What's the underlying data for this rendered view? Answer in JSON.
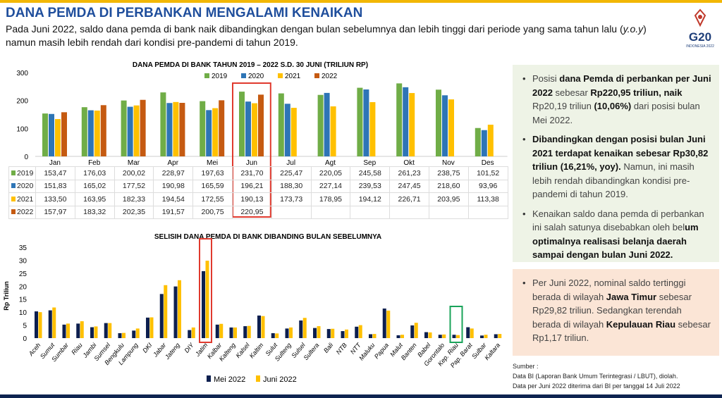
{
  "header": {
    "title": "DANA PEMDA DI PERBANKAN MENGALAMI KENAIKAN",
    "subtitle_parts": [
      "Pada Juni 2022, saldo dana pemda di bank naik dibandingkan dengan bulan sebelumnya dan lebih tinggi dari periode yang sama tahun lalu (",
      "y.o.y",
      ")",
      "namun masih lebih rendah dari kondisi pre-pandemi di tahun 2019."
    ],
    "logo": {
      "text": "G20",
      "sub": "INDONESIA 2022"
    }
  },
  "chart_data": [
    {
      "type": "bar",
      "title": "DANA PEMDA DI BANK TAHUN 2019 – 2022 S.D. 30 JUNI (TRILIUN RP)",
      "ylim": [
        0,
        300
      ],
      "yticks": [
        "0",
        "100",
        "200",
        "300"
      ],
      "legend": "top",
      "categories": [
        "Jan",
        "Feb",
        "Mar",
        "Apr",
        "Mei",
        "Jun",
        "Jul",
        "Agt",
        "Sep",
        "Okt",
        "Nov",
        "Des"
      ],
      "highlight": "Jun",
      "highlight_color": "#e03a2e",
      "series": [
        {
          "name": "2019",
          "color": "#70ad47",
          "values": [
            153.47,
            176.03,
            200.02,
            228.97,
            197.63,
            231.7,
            225.47,
            220.05,
            245.58,
            261.23,
            238.75,
            101.52
          ],
          "labels": [
            "153,47",
            "176,03",
            "200,02",
            "228,97",
            "197,63",
            "231,70",
            "225,47",
            "220,05",
            "245,58",
            "261,23",
            "238,75",
            "101,52"
          ]
        },
        {
          "name": "2020",
          "color": "#2e75b6",
          "values": [
            151.83,
            165.02,
            177.52,
            190.98,
            165.59,
            196.21,
            188.3,
            227.14,
            239.53,
            247.45,
            218.6,
            93.96
          ],
          "labels": [
            "151,83",
            "165,02",
            "177,52",
            "190,98",
            "165,59",
            "196,21",
            "188,30",
            "227,14",
            "239,53",
            "247,45",
            "218,60",
            "93,96"
          ]
        },
        {
          "name": "2021",
          "color": "#ffc000",
          "values": [
            133.5,
            163.95,
            182.33,
            194.54,
            172.55,
            190.13,
            173.73,
            178.95,
            194.12,
            226.71,
            203.95,
            113.38
          ],
          "labels": [
            "133,50",
            "163,95",
            "182,33",
            "194,54",
            "172,55",
            "190,13",
            "173,73",
            "178,95",
            "194,12",
            "226,71",
            "203,95",
            "113,38"
          ]
        },
        {
          "name": "2022",
          "color": "#c55a11",
          "values": [
            157.97,
            183.32,
            202.35,
            191.57,
            200.75,
            220.95,
            null,
            null,
            null,
            null,
            null,
            null
          ],
          "labels": [
            "157,97",
            "183,32",
            "202,35",
            "191,57",
            "200,75",
            "220,95",
            "",
            "",
            "",
            "",
            "",
            ""
          ]
        }
      ]
    },
    {
      "type": "bar",
      "title": "SELISIH DANA PEMDA DI BANK DIBANDING BULAN SEBELUMNYA",
      "ylabel": "Rp Triliun",
      "ylim": [
        0,
        35
      ],
      "yticks": [
        "0",
        "5",
        "10",
        "15",
        "20",
        "25",
        "30",
        "35"
      ],
      "legend": "bottom",
      "categories": [
        "Aceh",
        "Sumut",
        "Sumbar",
        "Riau",
        "Jambi",
        "Sumsel",
        "Bengkulu",
        "Lampung",
        "DKI",
        "Jabar",
        "Jateng",
        "DIY",
        "Jatim",
        "Kalbar",
        "Kalteng",
        "Kalsel",
        "Kaltim",
        "Sulut",
        "Sulteng",
        "Sulsel",
        "Sultera",
        "Bali",
        "NTB",
        "NTT",
        "Maluku",
        "Papua",
        "Malut",
        "Banten",
        "Babel",
        "Gorontalo",
        "Kep. Riau",
        "Pap. Barat",
        "Sulbar",
        "Kaltara"
      ],
      "highlights": [
        {
          "category": "Jatim",
          "color": "#e03a2e"
        },
        {
          "category": "Kep. Riau",
          "color": "#1aa35a"
        }
      ],
      "series": [
        {
          "name": "Mei 2022",
          "color": "#0d1f4f",
          "values": [
            10.3,
            10.7,
            5.2,
            5.6,
            4.2,
            5.8,
            1.9,
            2.9,
            7.9,
            17.0,
            19.9,
            3.1,
            25.8,
            5.2,
            4.1,
            4.6,
            8.7,
            1.9,
            3.7,
            6.8,
            3.9,
            3.5,
            2.7,
            4.4,
            1.5,
            11.4,
            1.1,
            4.9,
            2.3,
            1.3,
            1.3,
            4.2,
            1.0,
            1.5
          ]
        },
        {
          "name": "Juni 2022",
          "color": "#ffc000",
          "values": [
            10.0,
            11.8,
            5.6,
            6.5,
            4.5,
            5.8,
            2.0,
            3.7,
            8.0,
            20.4,
            22.3,
            4.1,
            29.82,
            5.5,
            4.1,
            4.7,
            8.5,
            1.8,
            4.1,
            7.8,
            4.6,
            3.6,
            3.3,
            5.0,
            1.6,
            10.6,
            1.3,
            5.9,
            2.2,
            1.4,
            1.17,
            3.7,
            1.3,
            1.6
          ]
        }
      ]
    }
  ],
  "panel1": {
    "bullets": [
      [
        [
          "Posisi ",
          false
        ],
        [
          "dana Pemda di perbankan per Juni 2022",
          true
        ],
        [
          " sebesar ",
          false
        ],
        [
          "Rp220,95 triliun, naik",
          true
        ],
        [
          " Rp20,19 triliun ",
          false
        ],
        [
          "(10,06%)",
          true
        ],
        [
          " dari posisi bulan Mei 2022.",
          false
        ]
      ],
      [
        [
          "Dibandingkan dengan posisi bulan Juni 2021 terdapat kenaikan sebesar Rp30,82 triliun (16,21%, yoy).",
          true
        ],
        [
          " Namun, ini masih lebih rendah dibandingkan kondisi pre-pandemi di tahun 2019.",
          false
        ]
      ],
      [
        [
          "Kenaikan saldo dana pemda di perbankan ini salah satunya disebabkan oleh bel",
          false
        ],
        [
          "um optimalnya realisasi belanja daerah sampai dengan bulan Juni 2022.",
          true
        ]
      ]
    ]
  },
  "panel2": {
    "bullets": [
      [
        [
          "Per Juni 2022, nominal saldo tertinggi berada di wilayah ",
          false
        ],
        [
          "Jawa Timur",
          true
        ],
        [
          " sebesar Rp29,82 triliun. Sedangkan terendah berada di wilayah ",
          false
        ],
        [
          "Kepulauan Riau",
          true
        ],
        [
          " sebesar Rp1,17 triliun.",
          false
        ]
      ]
    ]
  },
  "source": {
    "label": "Sumber :",
    "line1": "Data BI (Laporan Bank Umum Terintegrasi / LBUT), diolah.",
    "line2": "Data per Juni 2022 diterima dari BI per tanggal 14 Juli 2022"
  }
}
